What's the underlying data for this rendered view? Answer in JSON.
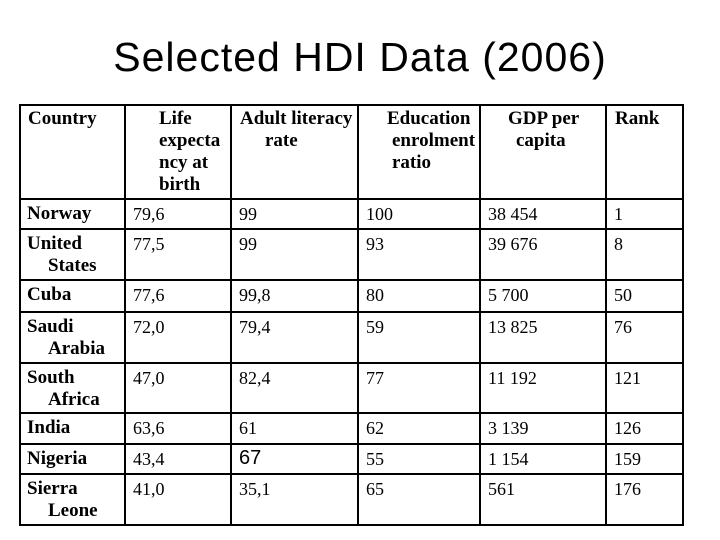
{
  "title": "Selected HDI Data (2006)",
  "colors": {
    "background": "#ffffff",
    "text": "#000000",
    "border": "#000000"
  },
  "table": {
    "columns": [
      {
        "id": "country",
        "header_lines": [
          "Country"
        ]
      },
      {
        "id": "life",
        "header_lines": [
          "Life",
          "expecta",
          "ncy at",
          "birth"
        ]
      },
      {
        "id": "adult",
        "header_lines": [
          "Adult literacy",
          "rate"
        ]
      },
      {
        "id": "education",
        "header_lines": [
          "Education",
          "enrolment",
          "ratio"
        ]
      },
      {
        "id": "gdp",
        "header_lines": [
          "GDP per",
          "capita"
        ]
      },
      {
        "id": "rank",
        "header_lines": [
          "Rank"
        ]
      }
    ],
    "rows": [
      {
        "country_lines": [
          "Norway"
        ],
        "life": "79,6",
        "adult": "99",
        "education": "100",
        "gdp": "38 454",
        "rank": "1"
      },
      {
        "country_lines": [
          "United",
          "States"
        ],
        "life": "77,5",
        "adult": "99",
        "education": "93",
        "gdp": "39 676",
        "rank": "8"
      },
      {
        "country_lines": [
          "Cuba"
        ],
        "life": "77,6",
        "adult": "99,8",
        "education": "80",
        "gdp": "5 700",
        "rank": "50"
      },
      {
        "country_lines": [
          "Saudi",
          "Arabia"
        ],
        "life": "72,0",
        "adult": "79,4",
        "education": "59",
        "gdp": "13 825",
        "rank": "76"
      },
      {
        "country_lines": [
          "South",
          "Africa"
        ],
        "life": "47,0",
        "adult": "82,4",
        "education": "77",
        "gdp": "11 192",
        "rank": "121"
      },
      {
        "country_lines": [
          "India"
        ],
        "life": "63,6",
        "adult": "61",
        "education": "62",
        "gdp": "3 139",
        "rank": "126"
      },
      {
        "country_lines": [
          "Nigeria"
        ],
        "life": "43,4",
        "adult": "67",
        "education": "55",
        "gdp": "1 154",
        "rank": "159"
      },
      {
        "country_lines": [
          "Sierra",
          "Leone"
        ],
        "life": "41,0",
        "adult": "35,1",
        "education": "65",
        "gdp": "561",
        "rank": "176"
      }
    ]
  }
}
